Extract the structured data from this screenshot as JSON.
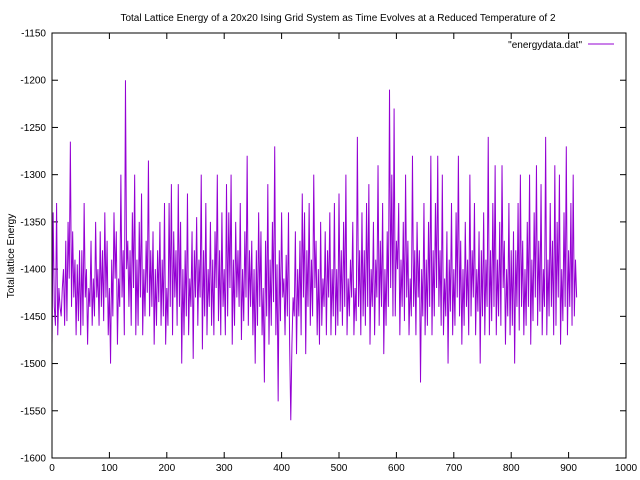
{
  "chart_data": {
    "type": "line",
    "title": "Total Lattice Energy of a 20x20 Ising Grid System as Time Evolves at a Reduced Temperature of 2",
    "xlabel": "",
    "ylabel": "Total lattice Energy",
    "xlim": [
      0,
      1000
    ],
    "ylim": [
      -1600,
      -1150
    ],
    "x_ticks": [
      0,
      100,
      200,
      300,
      400,
      500,
      600,
      700,
      800,
      900,
      1000
    ],
    "y_ticks": [
      -1600,
      -1550,
      -1500,
      -1450,
      -1400,
      -1350,
      -1300,
      -1250,
      -1200,
      -1150
    ],
    "grid": false,
    "legend_position": "top-right",
    "series": [
      {
        "name": "\"energydata.dat\"",
        "color": "#9400d3",
        "x_start": 0,
        "x_step": 2,
        "values": [
          -1480,
          -1340,
          -1440,
          -1460,
          -1330,
          -1470,
          -1420,
          -1440,
          -1450,
          -1420,
          -1400,
          -1460,
          -1370,
          -1455,
          -1350,
          -1410,
          -1265,
          -1440,
          -1360,
          -1430,
          -1390,
          -1470,
          -1395,
          -1455,
          -1380,
          -1470,
          -1380,
          -1460,
          -1330,
          -1430,
          -1400,
          -1480,
          -1420,
          -1440,
          -1370,
          -1460,
          -1410,
          -1450,
          -1350,
          -1430,
          -1400,
          -1460,
          -1360,
          -1440,
          -1380,
          -1455,
          -1340,
          -1430,
          -1370,
          -1470,
          -1420,
          -1500,
          -1390,
          -1450,
          -1340,
          -1410,
          -1360,
          -1480,
          -1410,
          -1440,
          -1300,
          -1430,
          -1380,
          -1470,
          -1200,
          -1400,
          -1370,
          -1440,
          -1380,
          -1460,
          -1340,
          -1420,
          -1300,
          -1470,
          -1390,
          -1460,
          -1350,
          -1430,
          -1320,
          -1470,
          -1400,
          -1450,
          -1370,
          -1425,
          -1285,
          -1450,
          -1380,
          -1440,
          -1360,
          -1480,
          -1400,
          -1460,
          -1380,
          -1435,
          -1350,
          -1460,
          -1390,
          -1450,
          -1330,
          -1480,
          -1420,
          -1460,
          -1330,
          -1440,
          -1310,
          -1470,
          -1360,
          -1430,
          -1380,
          -1460,
          -1310,
          -1440,
          -1350,
          -1500,
          -1400,
          -1470,
          -1380,
          -1450,
          -1320,
          -1470,
          -1410,
          -1440,
          -1360,
          -1495,
          -1380,
          -1430,
          -1345,
          -1460,
          -1390,
          -1430,
          -1300,
          -1485,
          -1380,
          -1450,
          -1330,
          -1470,
          -1400,
          -1440,
          -1350,
          -1460,
          -1390,
          -1470,
          -1360,
          -1420,
          -1300,
          -1455,
          -1380,
          -1470,
          -1340,
          -1440,
          -1400,
          -1470,
          -1310,
          -1450,
          -1340,
          -1420,
          -1300,
          -1480,
          -1390,
          -1460,
          -1350,
          -1430,
          -1380,
          -1440,
          -1330,
          -1475,
          -1400,
          -1455,
          -1360,
          -1430,
          -1280,
          -1460,
          -1380,
          -1440,
          -1370,
          -1470,
          -1400,
          -1500,
          -1380,
          -1460,
          -1340,
          -1440,
          -1360,
          -1470,
          -1420,
          -1520,
          -1370,
          -1450,
          -1310,
          -1480,
          -1390,
          -1460,
          -1350,
          -1435,
          -1270,
          -1470,
          -1395,
          -1540,
          -1380,
          -1455,
          -1340,
          -1430,
          -1410,
          -1470,
          -1385,
          -1450,
          -1340,
          -1480,
          -1560,
          -1480,
          -1430,
          -1450,
          -1360,
          -1490,
          -1400,
          -1450,
          -1370,
          -1470,
          -1320,
          -1430,
          -1340,
          -1490,
          -1380,
          -1440,
          -1330,
          -1460,
          -1390,
          -1450,
          -1300,
          -1420,
          -1370,
          -1470,
          -1400,
          -1480,
          -1350,
          -1460,
          -1410,
          -1440,
          -1360,
          -1470,
          -1380,
          -1430,
          -1340,
          -1470,
          -1400,
          -1450,
          -1330,
          -1470,
          -1400,
          -1460,
          -1320,
          -1445,
          -1380,
          -1460,
          -1350,
          -1440,
          -1300,
          -1470,
          -1410,
          -1450,
          -1390,
          -1430,
          -1350,
          -1470,
          -1420,
          -1455,
          -1260,
          -1440,
          -1380,
          -1470,
          -1340,
          -1450,
          -1380,
          -1460,
          -1330,
          -1440,
          -1310,
          -1480,
          -1400,
          -1440,
          -1350,
          -1470,
          -1390,
          -1430,
          -1290,
          -1460,
          -1370,
          -1440,
          -1330,
          -1490,
          -1400,
          -1460,
          -1360,
          -1440,
          -1210,
          -1420,
          -1300,
          -1450,
          -1230,
          -1450,
          -1370,
          -1400,
          -1330,
          -1470,
          -1390,
          -1440,
          -1350,
          -1455,
          -1300,
          -1430,
          -1370,
          -1470,
          -1410,
          -1450,
          -1280,
          -1440,
          -1380,
          -1470,
          -1350,
          -1430,
          -1380,
          -1520,
          -1400,
          -1450,
          -1330,
          -1470,
          -1390,
          -1460,
          -1350,
          -1440,
          -1280,
          -1470,
          -1380,
          -1450,
          -1330,
          -1420,
          -1280,
          -1440,
          -1380,
          -1460,
          -1300,
          -1470,
          -1410,
          -1450,
          -1360,
          -1500,
          -1390,
          -1445,
          -1330,
          -1470,
          -1400,
          -1460,
          -1340,
          -1430,
          -1280,
          -1450,
          -1370,
          -1480,
          -1400,
          -1460,
          -1350,
          -1440,
          -1390,
          -1470,
          -1300,
          -1450,
          -1380,
          -1430,
          -1330,
          -1470,
          -1400,
          -1445,
          -1360,
          -1500,
          -1380,
          -1450,
          -1340,
          -1470,
          -1390,
          -1440,
          -1260,
          -1470,
          -1380,
          -1455,
          -1330,
          -1440,
          -1290,
          -1470,
          -1390,
          -1450,
          -1350,
          -1460,
          -1290,
          -1420,
          -1370,
          -1480,
          -1400,
          -1450,
          -1330,
          -1470,
          -1380,
          -1460,
          -1360,
          -1500,
          -1380,
          -1440,
          -1330,
          -1465,
          -1300,
          -1440,
          -1370,
          -1470,
          -1400,
          -1460,
          -1350,
          -1440,
          -1300,
          -1480,
          -1390,
          -1455,
          -1340,
          -1430,
          -1290,
          -1460,
          -1370,
          -1445,
          -1310,
          -1470,
          -1400,
          -1440,
          -1260,
          -1470,
          -1390,
          -1450,
          -1330,
          -1440,
          -1370,
          -1470,
          -1290,
          -1460,
          -1350,
          -1430,
          -1300,
          -1480,
          -1400,
          -1455,
          -1340,
          -1440,
          -1270,
          -1470,
          -1380,
          -1440,
          -1330,
          -1460,
          -1300,
          -1450,
          -1390,
          -1430
        ]
      }
    ]
  }
}
